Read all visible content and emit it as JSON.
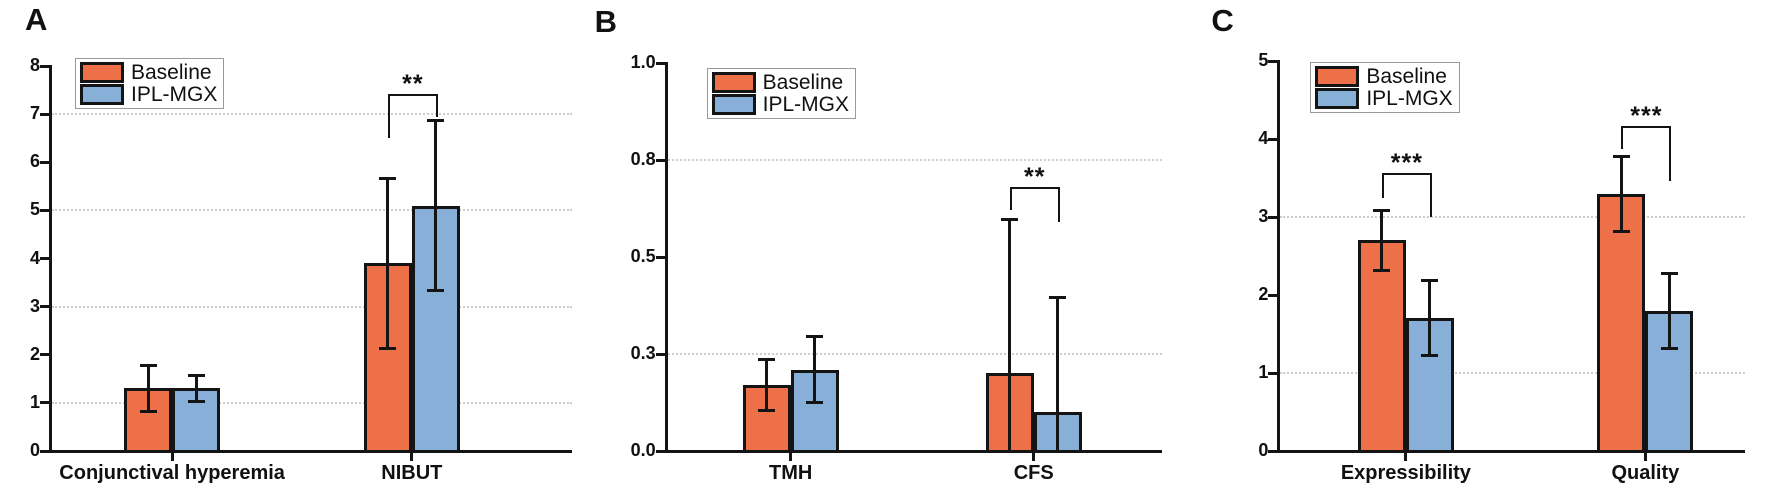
{
  "figure": {
    "background": "#ffffff",
    "panel_letters": [
      "A",
      "B",
      "C"
    ]
  },
  "colors": {
    "baseline": "#ee7048",
    "ipl_mgx": "#88afd7",
    "bar_border": "#141414",
    "axis": "#141414",
    "gridline": "#cdcdcd",
    "legend_border": "#9a9a9a",
    "text": "#111111"
  },
  "legend": {
    "entries": [
      "Baseline",
      "IPL-MGX"
    ]
  },
  "chart_data": [
    {
      "panel": "A",
      "type": "bar",
      "categories": [
        "Conjunctival hyperemia",
        "NIBUT"
      ],
      "series": [
        {
          "name": "Baseline",
          "color_key": "baseline",
          "values": [
            1.3,
            3.9
          ],
          "error_low": [
            0.5,
            1.8
          ],
          "error_high": [
            0.5,
            1.8
          ]
        },
        {
          "name": "IPL-MGX",
          "color_key": "ipl_mgx",
          "values": [
            1.3,
            5.1
          ],
          "error_low": [
            0.3,
            1.8
          ],
          "error_high": [
            0.3,
            1.8
          ]
        }
      ],
      "ylim": [
        0,
        8
      ],
      "yticks": [
        0,
        1,
        2,
        3,
        4,
        5,
        6,
        7,
        8
      ],
      "ytick_labels": [
        "0",
        "1",
        "2",
        "3",
        "4",
        "5",
        "6",
        "7",
        "8"
      ],
      "gridlines": [
        1,
        3,
        5,
        7
      ],
      "grid_style": "dotted",
      "legend_position": "top-left",
      "group_positions": [
        0.231,
        0.692
      ],
      "significance": [
        {
          "category_index": 1,
          "label": "**",
          "bracket_y": 7.42,
          "left_leg_bottom": 6.5,
          "right_leg_bottom": 6.95
        }
      ]
    },
    {
      "panel": "B",
      "type": "bar",
      "categories": [
        "TMH",
        "CFS"
      ],
      "series": [
        {
          "name": "Baseline",
          "color_key": "baseline",
          "values": [
            0.17,
            0.2
          ],
          "error_low": [
            0.07,
            0.2
          ],
          "error_high": [
            0.07,
            0.4
          ]
        },
        {
          "name": "IPL-MGX",
          "color_key": "ipl_mgx",
          "values": [
            0.21,
            0.1
          ],
          "error_low": [
            0.09,
            0.1
          ],
          "error_high": [
            0.09,
            0.3
          ]
        }
      ],
      "ylim": [
        0,
        1
      ],
      "yticks": [
        0,
        0.25,
        0.5,
        0.75,
        1
      ],
      "ytick_labels": [
        "0.0",
        "0.3",
        "0.5",
        "0.8",
        "1.0"
      ],
      "gridlines": [
        0.25,
        0.75
      ],
      "grid_style": "dotted",
      "legend_position": "top-left",
      "group_positions": [
        0.249,
        0.741
      ],
      "significance": [
        {
          "category_index": 1,
          "label": "**",
          "bracket_y": 0.68,
          "left_leg_bottom": 0.62,
          "right_leg_bottom": 0.59
        }
      ]
    },
    {
      "panel": "C",
      "type": "bar",
      "categories": [
        "Expressibility",
        "Quality"
      ],
      "series": [
        {
          "name": "Baseline",
          "color_key": "baseline",
          "values": [
            2.7,
            3.3
          ],
          "error_low": [
            0.4,
            0.5
          ],
          "error_high": [
            0.4,
            0.5
          ]
        },
        {
          "name": "IPL-MGX",
          "color_key": "ipl_mgx",
          "values": [
            1.7,
            1.8
          ],
          "error_low": [
            0.5,
            0.5
          ],
          "error_high": [
            0.5,
            0.5
          ]
        }
      ],
      "ylim": [
        0,
        5
      ],
      "yticks": [
        0,
        1,
        2,
        3,
        4,
        5
      ],
      "ytick_labels": [
        "0",
        "1",
        "2",
        "3",
        "4",
        "5"
      ],
      "gridlines": [
        1,
        3
      ],
      "grid_style": "dotted",
      "legend_position": "top-left",
      "group_positions": [
        0.27,
        0.785
      ],
      "significance": [
        {
          "category_index": 0,
          "label": "***",
          "bracket_y": 3.56,
          "left_leg_bottom": 3.24,
          "right_leg_bottom": 3.0
        },
        {
          "category_index": 1,
          "label": "***",
          "bracket_y": 4.17,
          "left_leg_bottom": 3.87,
          "right_leg_bottom": 3.46
        }
      ]
    }
  ]
}
